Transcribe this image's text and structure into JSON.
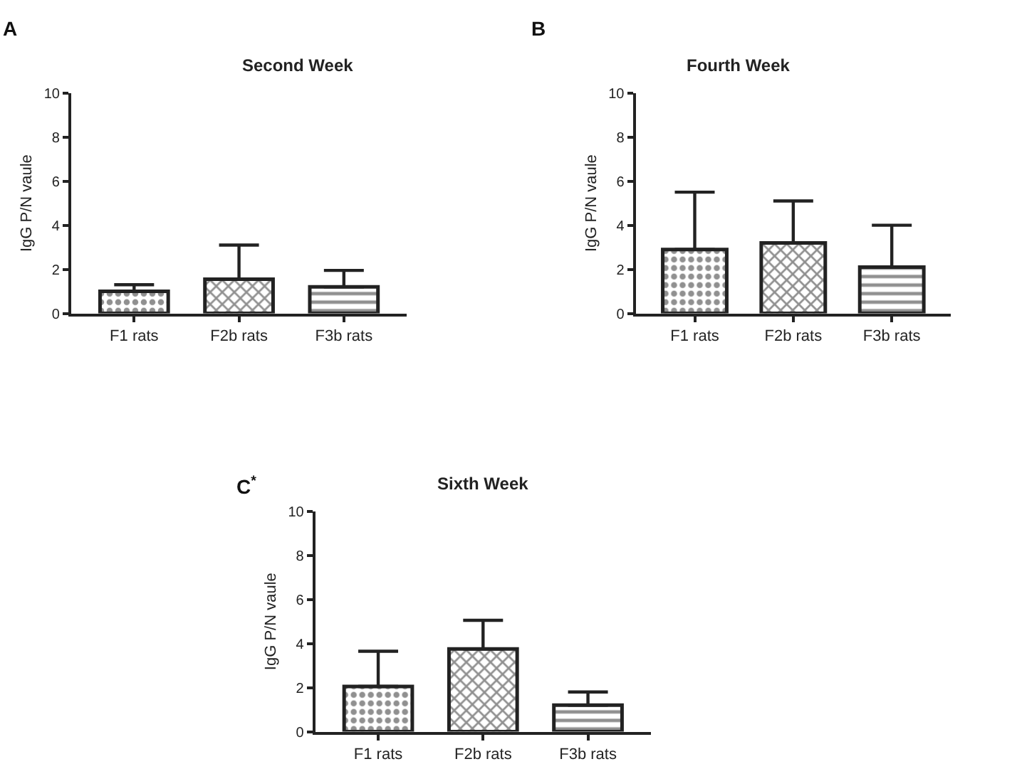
{
  "chart_data": [
    {
      "type": "bar",
      "title": "Second Week",
      "ylabel": "IgG P/N vaule",
      "annotations": [
        "A"
      ],
      "categories": [
        "F1 rats",
        "F2b rats",
        "F3b rats"
      ],
      "values": [
        1.0,
        1.55,
        1.2
      ],
      "errors": [
        [
          1.0,
          1.3
        ],
        [
          1.55,
          3.1
        ],
        [
          1.2,
          1.95
        ]
      ],
      "color": "#222222",
      "ylim": [
        0,
        10
      ],
      "yticks": [
        0,
        2,
        4,
        6,
        8,
        10
      ]
    },
    {
      "type": "bar",
      "title": "Fourth Week",
      "ylabel": "IgG P/N vaule",
      "annotations": [
        "B"
      ],
      "categories": [
        "F1 rats",
        "F2b rats",
        "F3b rats"
      ],
      "values": [
        2.9,
        3.2,
        2.1
      ],
      "errors": [
        [
          2.9,
          5.5
        ],
        [
          3.2,
          5.1
        ],
        [
          2.1,
          4.0
        ]
      ],
      "color": "#222222",
      "ylim": [
        0,
        10
      ],
      "yticks": [
        0,
        2,
        4,
        6,
        8,
        10
      ]
    },
    {
      "type": "bar",
      "title": "Sixth Week",
      "ylabel": "IgG P/N vaule",
      "annotations": [
        "C$^{*}$"
      ],
      "categories": [
        "F1 rats",
        "F2b rats",
        "F3b rats"
      ],
      "values": [
        2.05,
        3.75,
        1.2
      ],
      "errors": [
        [
          2.05,
          3.65
        ],
        [
          3.75,
          5.05
        ],
        [
          1.2,
          1.8
        ]
      ],
      "color": "#222222",
      "ylim": [
        0,
        10
      ],
      "yticks": [
        0,
        2,
        4,
        6,
        8,
        10
      ]
    }
  ]
}
